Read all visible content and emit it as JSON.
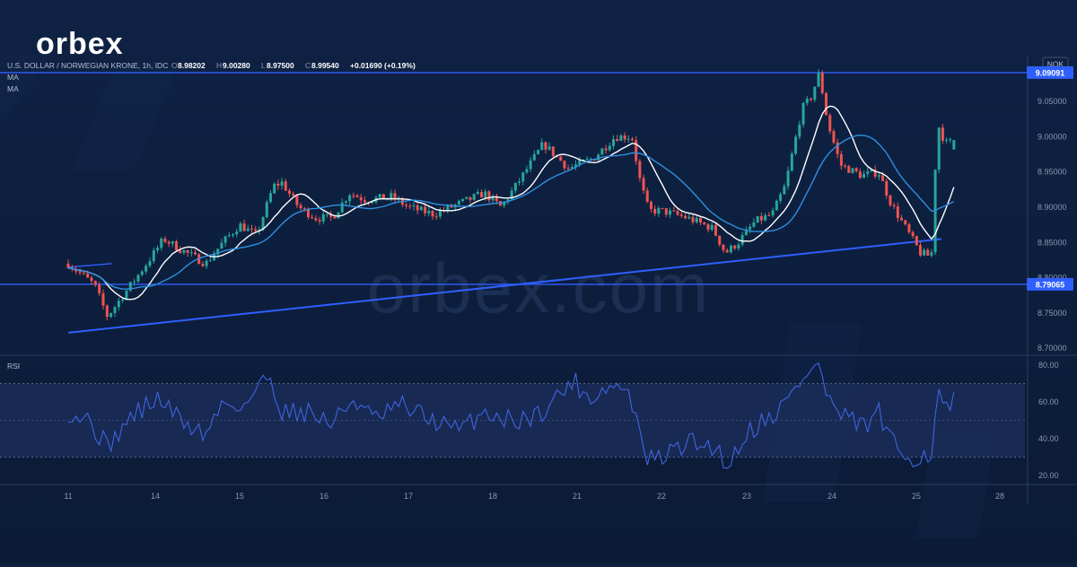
{
  "brand": {
    "logo_text": "orbex",
    "watermark_text": "orbex.com",
    "colors": {
      "logo": "#ffffff",
      "logo_accent": "#e8323c",
      "watermark": "#1b2f52"
    }
  },
  "header": {
    "symbol": "U.S. DOLLAR / NORWEGIAN KRONE, 1h, IDC",
    "ohlc": [
      {
        "key": "O",
        "value": "8.98202"
      },
      {
        "key": "H",
        "value": "9.00280"
      },
      {
        "key": "L",
        "value": "8.97500"
      },
      {
        "key": "C",
        "value": "8.99540"
      }
    ],
    "change": "+0.01690 (+0.19%)",
    "indicators": [
      "MA",
      "MA"
    ],
    "currency": "NOK"
  },
  "colors": {
    "background": "#0d1f3d",
    "panel_border": "#2a3d5e",
    "grid_text": "#8a97ad",
    "candle_up": "#26a69a",
    "candle_down": "#ef5350",
    "ma_fast": "#ffffff",
    "ma_slow": "#2f8fe0",
    "level_line": "#2f5fff",
    "trendline": "#2f5fff",
    "label_bg": "#2f5fff",
    "rsi_line": "#3f63e0",
    "rsi_band": "#1c2f5c"
  },
  "chart_data": [
    {
      "type": "candlestick",
      "title": "U.S. DOLLAR / NORWEGIAN KRONE, 1h, IDC",
      "ylim": [
        8.69,
        9.115
      ],
      "y_ticks": [
        "9.05000",
        "9.00000",
        "8.95000",
        "8.90000",
        "8.85000",
        "8.80000",
        "8.75000",
        "8.70000"
      ],
      "x_ticks": [
        "11",
        "14",
        "15",
        "16",
        "17",
        "18",
        "21",
        "22",
        "23",
        "24",
        "25",
        "28"
      ],
      "horizontal_levels": [
        {
          "label": "9.09091",
          "value": 9.09091
        },
        {
          "label": "8.79065",
          "value": 8.79065
        }
      ],
      "trendlines": [
        {
          "from": {
            "x": 0.0,
            "y": 8.722
          },
          "to": {
            "x": 10.3,
            "y": 8.855
          }
        },
        {
          "from": {
            "x": 0.0,
            "y": 8.815
          },
          "to": {
            "x": 0.5,
            "y": 8.82
          }
        }
      ],
      "anchors": [
        [
          0.0,
          8.82
        ],
        [
          0.3,
          8.79
        ],
        [
          0.45,
          8.745
        ],
        [
          0.6,
          8.77
        ],
        [
          0.9,
          8.82
        ],
        [
          1.1,
          8.855
        ],
        [
          1.3,
          8.84
        ],
        [
          1.6,
          8.82
        ],
        [
          1.8,
          8.85
        ],
        [
          2.0,
          8.875
        ],
        [
          2.2,
          8.86
        ],
        [
          2.4,
          8.93
        ],
        [
          2.5,
          8.935
        ],
        [
          2.7,
          8.9
        ],
        [
          2.9,
          8.885
        ],
        [
          3.1,
          8.885
        ],
        [
          3.3,
          8.92
        ],
        [
          3.5,
          8.91
        ],
        [
          3.8,
          8.915
        ],
        [
          4.0,
          8.9
        ],
        [
          4.3,
          8.89
        ],
        [
          4.6,
          8.905
        ],
        [
          4.9,
          8.92
        ],
        [
          5.1,
          8.9
        ],
        [
          5.3,
          8.935
        ],
        [
          5.6,
          8.99
        ],
        [
          5.9,
          8.955
        ],
        [
          6.2,
          8.97
        ],
        [
          6.45,
          9.0
        ],
        [
          6.65,
          9.0
        ],
        [
          6.75,
          8.935
        ],
        [
          6.85,
          8.895
        ],
        [
          7.0,
          8.895
        ],
        [
          7.3,
          8.885
        ],
        [
          7.6,
          8.87
        ],
        [
          7.75,
          8.835
        ],
        [
          7.9,
          8.85
        ],
        [
          8.1,
          8.88
        ],
        [
          8.3,
          8.89
        ],
        [
          8.45,
          8.93
        ],
        [
          8.65,
          9.04
        ],
        [
          8.75,
          9.055
        ],
        [
          8.85,
          9.09
        ],
        [
          8.95,
          9.02
        ],
        [
          9.1,
          8.96
        ],
        [
          9.35,
          8.945
        ],
        [
          9.55,
          8.95
        ],
        [
          9.7,
          8.905
        ],
        [
          9.9,
          8.865
        ],
        [
          10.05,
          8.835
        ],
        [
          10.18,
          8.83
        ],
        [
          10.25,
          9.02
        ],
        [
          10.35,
          8.99
        ],
        [
          10.45,
          8.995
        ]
      ],
      "candle_count": 235,
      "last": {
        "open": 8.98202,
        "high": 9.0028,
        "low": 8.975,
        "close": 8.9954
      },
      "series": [
        {
          "name": "MA",
          "kind": "moving-average",
          "period": 10
        },
        {
          "name": "MA",
          "kind": "moving-average",
          "period": 20
        }
      ]
    },
    {
      "type": "line",
      "title": "RSI",
      "ylim": [
        15,
        85
      ],
      "y_ticks": [
        "80.00",
        "60.00",
        "40.00",
        "20.00"
      ],
      "bands": [
        30,
        70
      ],
      "midline": 50,
      "anchors": [
        [
          0.0,
          55
        ],
        [
          0.25,
          50
        ],
        [
          0.45,
          35
        ],
        [
          0.6,
          45
        ],
        [
          0.8,
          55
        ],
        [
          1.05,
          62
        ],
        [
          1.3,
          50
        ],
        [
          1.6,
          42
        ],
        [
          1.8,
          60
        ],
        [
          2.05,
          58
        ],
        [
          2.35,
          75
        ],
        [
          2.5,
          55
        ],
        [
          2.8,
          55
        ],
        [
          3.1,
          48
        ],
        [
          3.35,
          62
        ],
        [
          3.6,
          50
        ],
        [
          3.9,
          58
        ],
        [
          4.2,
          52
        ],
        [
          4.6,
          44
        ],
        [
          4.9,
          55
        ],
        [
          5.2,
          50
        ],
        [
          5.5,
          52
        ],
        [
          5.75,
          62
        ],
        [
          5.95,
          72
        ],
        [
          6.15,
          62
        ],
        [
          6.35,
          68
        ],
        [
          6.55,
          68
        ],
        [
          6.7,
          55
        ],
        [
          6.78,
          30
        ],
        [
          6.95,
          28
        ],
        [
          7.3,
          38
        ],
        [
          7.6,
          36
        ],
        [
          7.8,
          26
        ],
        [
          8.0,
          44
        ],
        [
          8.2,
          50
        ],
        [
          8.35,
          55
        ],
        [
          8.5,
          62
        ],
        [
          8.7,
          76
        ],
        [
          8.85,
          80
        ],
        [
          8.95,
          62
        ],
        [
          9.1,
          52
        ],
        [
          9.4,
          46
        ],
        [
          9.55,
          55
        ],
        [
          9.65,
          42
        ],
        [
          9.8,
          32
        ],
        [
          10.0,
          30
        ],
        [
          10.18,
          32
        ],
        [
          10.25,
          65
        ],
        [
          10.35,
          55
        ],
        [
          10.45,
          60
        ]
      ]
    }
  ]
}
